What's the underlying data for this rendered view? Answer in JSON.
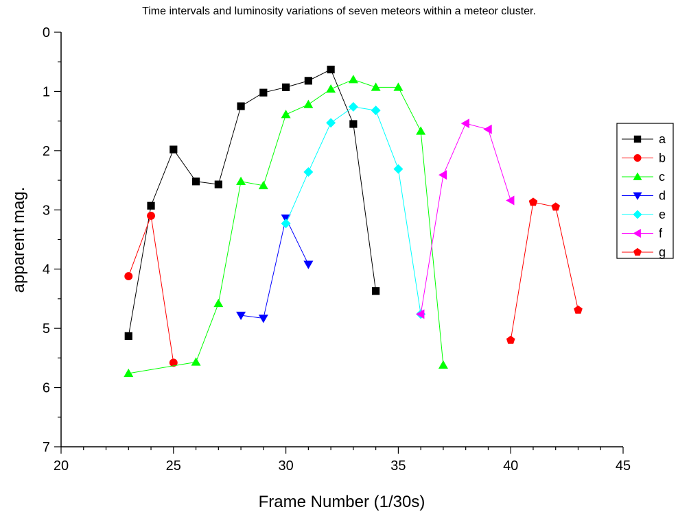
{
  "chart_data": {
    "type": "line",
    "title": "Time intervals and luminosity variations of seven meteors within a meteor cluster.",
    "xlabel": "Frame Number (1/30s)",
    "ylabel": "apparent mag.",
    "xlim": [
      20,
      45
    ],
    "ylim": [
      0,
      7
    ],
    "y_inverted": true,
    "x_ticks": [
      20,
      25,
      30,
      35,
      40,
      45
    ],
    "y_ticks": [
      0,
      1,
      2,
      3,
      4,
      5,
      6,
      7
    ],
    "grid": false,
    "legend_placement": "right",
    "series": [
      {
        "name": "a",
        "color": "#000000",
        "marker": "square",
        "x": [
          23,
          24,
          25,
          26,
          27,
          28,
          29,
          30,
          31,
          32,
          33,
          34
        ],
        "y": [
          5.13,
          2.93,
          1.98,
          2.52,
          2.57,
          1.25,
          1.02,
          0.93,
          0.82,
          0.63,
          1.55,
          4.37
        ]
      },
      {
        "name": "b",
        "color": "#ff0000",
        "marker": "circle",
        "x": [
          23,
          24,
          25
        ],
        "y": [
          4.12,
          3.1,
          5.58
        ]
      },
      {
        "name": "c",
        "color": "#00ff00",
        "marker": "triangle-up",
        "x": [
          23,
          26,
          27,
          28,
          29,
          30,
          31,
          32,
          33,
          34,
          35,
          36,
          37
        ],
        "y": [
          5.76,
          5.57,
          4.58,
          2.52,
          2.59,
          1.39,
          1.22,
          0.96,
          0.8,
          0.93,
          0.93,
          1.67,
          5.62
        ]
      },
      {
        "name": "d",
        "color": "#0000ff",
        "marker": "triangle-down",
        "x": [
          28,
          29,
          30,
          31
        ],
        "y": [
          4.78,
          4.83,
          3.14,
          3.92
        ]
      },
      {
        "name": "e",
        "color": "#00ffff",
        "marker": "diamond",
        "x": [
          30,
          31,
          32,
          33,
          34,
          35,
          36
        ],
        "y": [
          3.23,
          2.36,
          1.53,
          1.26,
          1.32,
          2.31,
          4.76
        ]
      },
      {
        "name": "f",
        "color": "#ff00ff",
        "marker": "triangle-left",
        "x": [
          36,
          37,
          38,
          39,
          40
        ],
        "y": [
          4.76,
          2.41,
          1.54,
          1.64,
          2.84
        ]
      },
      {
        "name": "g",
        "color": "#ff0000",
        "marker": "pentagon",
        "x": [
          40,
          41,
          42,
          43
        ],
        "y": [
          5.2,
          2.87,
          2.95,
          4.69
        ]
      }
    ]
  }
}
